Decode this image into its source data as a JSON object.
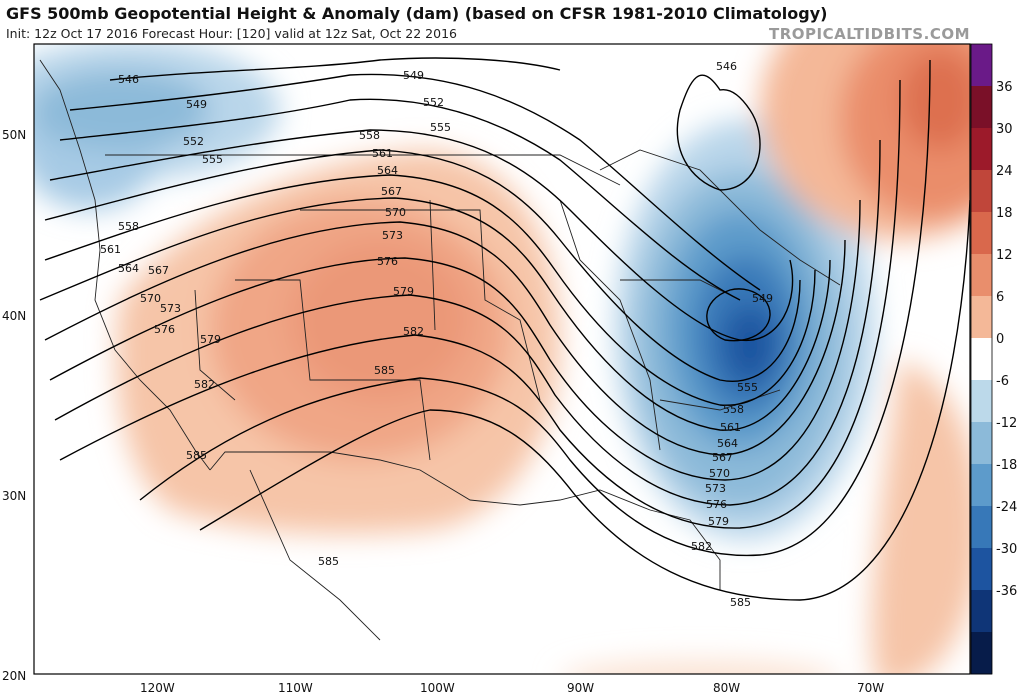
{
  "header": {
    "title": "GFS 500mb Geopotential Height & Anomaly (dam) (based on CFSR 1981-2010 Climatology)",
    "subtitle": "Init: 12z Oct 17 2016   Forecast Hour: [120]   valid at 12z Sat, Oct 22 2016",
    "brand": "TROPICALTIDBITS.COM"
  },
  "axes": {
    "lat_labels": [
      "50N",
      "40N",
      "30N",
      "20N"
    ],
    "lon_labels": [
      "120W",
      "110W",
      "100W",
      "90W",
      "80W",
      "70W"
    ]
  },
  "colorbar": {
    "labels": [
      "36",
      "30",
      "24",
      "18",
      "12",
      "6",
      "0",
      "-6",
      "-12",
      "-18",
      "-24",
      "-30",
      "-36"
    ],
    "colors": [
      "#6a1a88",
      "#7a1028",
      "#9c1a2a",
      "#c0463a",
      "#d9684c",
      "#e98e6c",
      "#f4b898",
      "#ffffff",
      "#bcd9ea",
      "#8cbad9",
      "#5d9bcb",
      "#3778b8",
      "#1d54a0",
      "#0f3577",
      "#071c4a"
    ]
  },
  "contour_labels": {
    "west": [
      "546",
      "549",
      "552",
      "555",
      "558",
      "561",
      "564",
      "567",
      "570",
      "573",
      "576",
      "579",
      "582",
      "585"
    ],
    "central": [
      "549",
      "552",
      "555",
      "558",
      "561",
      "564",
      "567",
      "570",
      "573",
      "576",
      "579",
      "582",
      "585"
    ],
    "east": [
      "546",
      "549",
      "555",
      "558",
      "561",
      "564",
      "567",
      "570",
      "573",
      "576",
      "579",
      "582",
      "585"
    ],
    "mexico": "585"
  }
}
